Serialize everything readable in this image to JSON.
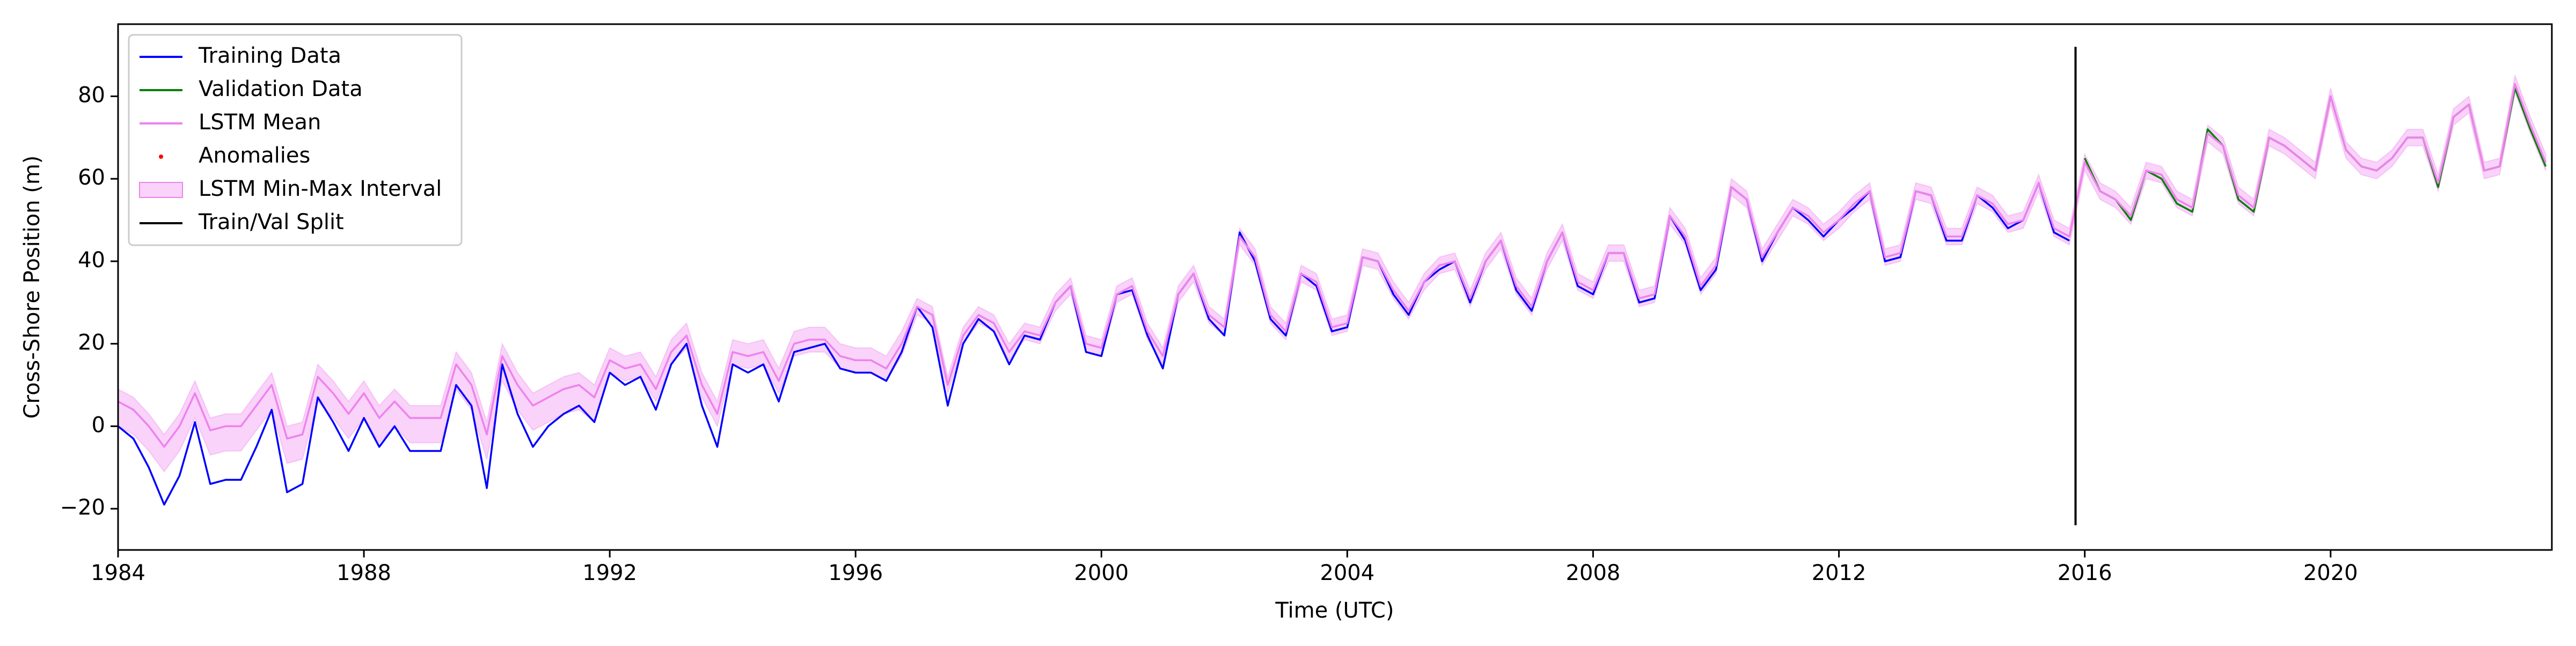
{
  "chart_data": {
    "type": "line",
    "xlabel": "Time (UTC)",
    "ylabel": "Cross-Shore Position (m)",
    "xlim": [
      1984,
      2023.6
    ],
    "ylim": [
      -30,
      97.5
    ],
    "xticks": [
      1984,
      1988,
      1992,
      1996,
      2000,
      2004,
      2008,
      2012,
      2016,
      2020
    ],
    "yticks": [
      {
        "value": -20,
        "label": "−20"
      },
      0,
      20,
      40,
      60,
      80
    ],
    "legend": "upper left",
    "x": [
      1984,
      1984.25,
      1984.5,
      1984.75,
      1985,
      1985.25,
      1985.5,
      1985.75,
      1986,
      1986.25,
      1986.5,
      1986.75,
      1987,
      1987.25,
      1987.5,
      1987.75,
      1988,
      1988.25,
      1988.5,
      1988.75,
      1989,
      1989.25,
      1989.5,
      1989.75,
      1990,
      1990.25,
      1990.5,
      1990.75,
      1991,
      1991.25,
      1991.5,
      1991.75,
      1992,
      1992.25,
      1992.5,
      1992.75,
      1993,
      1993.25,
      1993.5,
      1993.75,
      1994,
      1994.25,
      1994.5,
      1994.75,
      1995,
      1995.25,
      1995.5,
      1995.75,
      1996,
      1996.25,
      1996.5,
      1996.75,
      1997,
      1997.25,
      1997.5,
      1997.75,
      1998,
      1998.25,
      1998.5,
      1998.75,
      1999,
      1999.25,
      1999.5,
      1999.75,
      2000,
      2000.25,
      2000.5,
      2000.75,
      2001,
      2001.25,
      2001.5,
      2001.75,
      2002,
      2002.25,
      2002.5,
      2002.75,
      2003,
      2003.25,
      2003.5,
      2003.75,
      2004,
      2004.25,
      2004.5,
      2004.75,
      2005,
      2005.25,
      2005.5,
      2005.75,
      2006,
      2006.25,
      2006.5,
      2006.75,
      2007,
      2007.25,
      2007.5,
      2007.75,
      2008,
      2008.25,
      2008.5,
      2008.75,
      2009,
      2009.25,
      2009.5,
      2009.75,
      2010,
      2010.25,
      2010.5,
      2010.75,
      2011,
      2011.25,
      2011.5,
      2011.75,
      2012,
      2012.25,
      2012.5,
      2012.75,
      2013,
      2013.25,
      2013.5,
      2013.75,
      2014,
      2014.25,
      2014.5,
      2014.75,
      2015,
      2015.25,
      2015.5,
      2015.75,
      2016,
      2016.25,
      2016.5,
      2016.75,
      2017,
      2017.25,
      2017.5,
      2017.75,
      2018,
      2018.25,
      2018.5,
      2018.75,
      2019,
      2019.25,
      2019.5,
      2019.75,
      2020,
      2020.25,
      2020.5,
      2020.75,
      2021,
      2021.25,
      2021.5,
      2021.75,
      2022,
      2022.25,
      2022.5,
      2022.75,
      2023,
      2023.25,
      2023.5
    ],
    "series": [
      {
        "name": "Training Data",
        "kind": "line",
        "color": "#0000ff",
        "values": [
          0,
          -3,
          -10,
          -19,
          -12,
          1,
          -14,
          -13,
          -13,
          -5,
          4,
          -16,
          -14,
          7,
          1,
          -6,
          2,
          -5,
          0,
          -6,
          -6,
          -6,
          10,
          5,
          -15,
          15,
          3,
          -5,
          0,
          3,
          5,
          1,
          13,
          10,
          12,
          4,
          15,
          20,
          5,
          -5,
          15,
          13,
          15,
          6,
          18,
          19,
          20,
          14,
          13,
          13,
          11,
          18,
          29,
          24,
          5,
          20,
          26,
          23,
          15,
          22,
          21,
          30,
          34,
          18,
          17,
          32,
          33,
          22,
          14,
          32,
          37,
          26,
          22,
          47,
          40,
          26,
          22,
          37,
          34,
          23,
          24,
          41,
          40,
          32,
          27,
          35,
          38,
          40,
          30,
          40,
          45,
          33,
          28,
          40,
          47,
          34,
          32,
          42,
          42,
          30,
          31,
          51,
          45,
          33,
          38,
          58,
          55,
          40,
          47,
          53,
          50,
          46,
          50,
          53,
          57,
          40,
          41,
          57,
          56,
          45,
          45,
          56,
          53,
          48,
          50,
          59,
          47,
          45,
          null,
          null,
          null,
          null,
          null,
          null,
          null,
          null,
          null,
          null,
          null,
          null,
          null,
          null,
          null,
          null,
          null,
          null,
          null,
          null,
          null,
          null,
          null,
          null,
          null,
          null,
          null,
          null,
          null,
          null,
          null
        ]
      },
      {
        "name": "Validation Data",
        "kind": "line",
        "color": "#008000",
        "values": [
          null,
          null,
          null,
          null,
          null,
          null,
          null,
          null,
          null,
          null,
          null,
          null,
          null,
          null,
          null,
          null,
          null,
          null,
          null,
          null,
          null,
          null,
          null,
          null,
          null,
          null,
          null,
          null,
          null,
          null,
          null,
          null,
          null,
          null,
          null,
          null,
          null,
          null,
          null,
          null,
          null,
          null,
          null,
          null,
          null,
          null,
          null,
          null,
          null,
          null,
          null,
          null,
          null,
          null,
          null,
          null,
          null,
          null,
          null,
          null,
          null,
          null,
          null,
          null,
          null,
          null,
          null,
          null,
          null,
          null,
          null,
          null,
          null,
          null,
          null,
          null,
          null,
          null,
          null,
          null,
          null,
          null,
          null,
          null,
          null,
          null,
          null,
          null,
          null,
          null,
          null,
          null,
          null,
          null,
          null,
          null,
          null,
          null,
          null,
          null,
          null,
          null,
          null,
          null,
          null,
          null,
          null,
          null,
          null,
          null,
          null,
          null,
          null,
          null,
          null,
          null,
          null,
          null,
          null,
          null,
          null,
          null,
          null,
          null,
          null,
          null,
          null,
          null,
          65,
          57,
          55,
          50,
          62,
          60,
          54,
          52,
          72,
          68,
          55,
          52,
          70,
          68,
          65,
          62,
          80,
          67,
          63,
          62,
          65,
          70,
          70,
          58,
          75,
          78,
          62,
          63,
          82,
          72,
          63
        ]
      },
      {
        "name": "LSTM Mean",
        "kind": "line",
        "color": "#ee82ee",
        "values": [
          6,
          4,
          0,
          -5,
          0,
          8,
          -1,
          0,
          0,
          5,
          10,
          -3,
          -2,
          12,
          8,
          3,
          8,
          2,
          6,
          2,
          2,
          2,
          15,
          10,
          -2,
          17,
          10,
          5,
          7,
          9,
          10,
          7,
          16,
          14,
          15,
          9,
          18,
          22,
          10,
          3,
          18,
          17,
          18,
          11,
          20,
          21,
          21,
          17,
          16,
          16,
          14,
          20,
          29,
          27,
          10,
          22,
          27,
          25,
          18,
          23,
          22,
          30,
          34,
          20,
          19,
          32,
          34,
          23,
          17,
          32,
          37,
          27,
          24,
          46,
          41,
          27,
          23,
          37,
          35,
          24,
          25,
          41,
          40,
          33,
          28,
          35,
          39,
          40,
          31,
          40,
          45,
          34,
          29,
          40,
          47,
          35,
          33,
          42,
          42,
          31,
          32,
          51,
          46,
          34,
          39,
          58,
          55,
          41,
          47,
          53,
          51,
          47,
          50,
          54,
          57,
          41,
          42,
          57,
          56,
          46,
          46,
          56,
          54,
          49,
          50,
          59,
          48,
          46,
          64,
          57,
          55,
          51,
          62,
          61,
          55,
          53,
          71,
          68,
          56,
          53,
          70,
          68,
          65,
          62,
          80,
          67,
          63,
          62,
          65,
          70,
          70,
          59,
          75,
          78,
          62,
          63,
          83,
          73,
          64
        ]
      },
      {
        "name": "Anomalies",
        "kind": "scatter",
        "color": "#ff0000",
        "x": [],
        "values": []
      },
      {
        "name": "LSTM Min-Max Interval",
        "kind": "fill_between",
        "color": "#ee82ee",
        "alpha": 0.35,
        "lower": [
          0,
          -2,
          -6,
          -11,
          -6,
          2,
          -7,
          -6,
          -6,
          -1,
          4,
          -9,
          -8,
          6,
          2,
          -3,
          2,
          -4,
          0,
          -4,
          -4,
          -4,
          9,
          4,
          -8,
          11,
          4,
          -1,
          1,
          3,
          4,
          1,
          13,
          11,
          12,
          6,
          15,
          19,
          7,
          0,
          15,
          14,
          15,
          8,
          17,
          18,
          18,
          14,
          13,
          13,
          11,
          17,
          27,
          25,
          8,
          20,
          25,
          23,
          16,
          21,
          20,
          28,
          32,
          18,
          17,
          30,
          32,
          21,
          15,
          30,
          35,
          25,
          22,
          44,
          39,
          25,
          21,
          35,
          33,
          22,
          23,
          39,
          38,
          31,
          26,
          33,
          37,
          38,
          29,
          38,
          43,
          32,
          27,
          38,
          45,
          33,
          31,
          40,
          40,
          29,
          30,
          49,
          44,
          32,
          37,
          56,
          53,
          39,
          45,
          51,
          49,
          45,
          48,
          52,
          55,
          39,
          40,
          55,
          54,
          44,
          44,
          54,
          52,
          47,
          48,
          57,
          46,
          44,
          62,
          55,
          53,
          49,
          60,
          59,
          53,
          51,
          69,
          66,
          54,
          51,
          68,
          66,
          63,
          60,
          78,
          65,
          61,
          60,
          63,
          68,
          68,
          57,
          73,
          76,
          60,
          61,
          81,
          71,
          62
        ],
        "upper": [
          9,
          7,
          3,
          -2,
          3,
          11,
          2,
          3,
          3,
          8,
          13,
          0,
          1,
          15,
          11,
          6,
          11,
          5,
          9,
          5,
          5,
          5,
          18,
          13,
          1,
          20,
          13,
          8,
          10,
          12,
          13,
          10,
          19,
          17,
          18,
          12,
          21,
          25,
          13,
          6,
          21,
          20,
          21,
          14,
          23,
          24,
          24,
          20,
          19,
          19,
          17,
          23,
          31,
          29,
          12,
          24,
          29,
          27,
          20,
          25,
          24,
          32,
          36,
          22,
          21,
          34,
          36,
          25,
          19,
          34,
          39,
          29,
          26,
          48,
          43,
          29,
          25,
          39,
          37,
          26,
          27,
          43,
          42,
          35,
          30,
          37,
          41,
          42,
          33,
          42,
          47,
          36,
          31,
          42,
          49,
          37,
          35,
          44,
          44,
          33,
          34,
          53,
          48,
          36,
          41,
          60,
          57,
          43,
          49,
          55,
          53,
          49,
          52,
          56,
          59,
          43,
          44,
          59,
          58,
          48,
          48,
          58,
          56,
          51,
          52,
          61,
          50,
          48,
          66,
          59,
          57,
          53,
          64,
          63,
          57,
          55,
          73,
          70,
          58,
          55,
          72,
          70,
          67,
          64,
          82,
          69,
          65,
          64,
          67,
          72,
          72,
          61,
          77,
          80,
          64,
          65,
          85,
          75,
          66
        ]
      },
      {
        "name": "Train/Val Split",
        "kind": "vline",
        "color": "#000000",
        "x": 2015.85,
        "ymin": -24,
        "ymax": 92
      }
    ]
  }
}
